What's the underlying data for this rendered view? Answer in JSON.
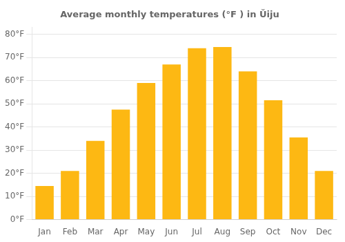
{
  "chart_data": {
    "type": "bar",
    "title": "Average monthly temperatures (°F ) in Ŭiju",
    "categories": [
      "Jan",
      "Feb",
      "Mar",
      "Apr",
      "May",
      "Jun",
      "Jul",
      "Aug",
      "Sep",
      "Oct",
      "Nov",
      "Dec"
    ],
    "values": [
      14.5,
      21.0,
      34.0,
      47.5,
      59.0,
      67.0,
      74.0,
      74.5,
      64.0,
      51.5,
      35.5,
      21.0
    ],
    "color": "#FDB813",
    "ylim": [
      0,
      83
    ],
    "yticks": [
      {
        "value": 0,
        "label": "0°F"
      },
      {
        "value": 10,
        "label": "10°F"
      },
      {
        "value": 20,
        "label": "20°F"
      },
      {
        "value": 30,
        "label": "30°F"
      },
      {
        "value": 40,
        "label": "40°F"
      },
      {
        "value": 50,
        "label": "50°F"
      },
      {
        "value": 60,
        "label": "60°F"
      },
      {
        "value": 70,
        "label": "70°F"
      },
      {
        "value": 80,
        "label": "80°F"
      }
    ],
    "grid": true
  }
}
